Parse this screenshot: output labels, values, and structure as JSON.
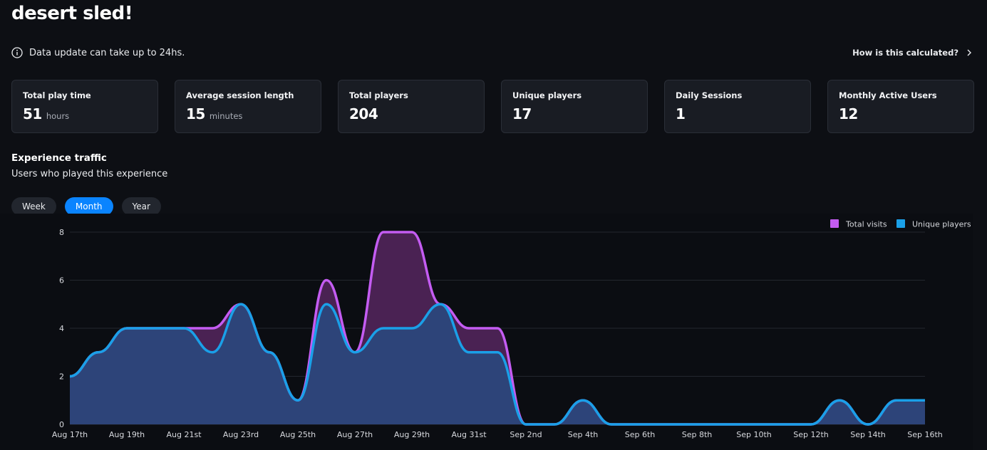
{
  "page": {
    "title": "desert sled!"
  },
  "notice": {
    "icon": "info-icon",
    "text": "Data update can take up to 24hs."
  },
  "help_link": {
    "label": "How is this calculated?",
    "icon": "chevron-right-icon"
  },
  "stats": [
    {
      "label": "Total play time",
      "value": "51",
      "unit": "hours"
    },
    {
      "label": "Average session length",
      "value": "15",
      "unit": "minutes"
    },
    {
      "label": "Total players",
      "value": "204",
      "unit": ""
    },
    {
      "label": "Unique players",
      "value": "17",
      "unit": ""
    },
    {
      "label": "Daily Sessions",
      "value": "1",
      "unit": ""
    },
    {
      "label": "Monthly Active Users",
      "value": "12",
      "unit": ""
    }
  ],
  "traffic": {
    "title": "Experience traffic",
    "subtitle": "Users who played this experience",
    "ranges": [
      "Week",
      "Month",
      "Year"
    ],
    "active_range": "Month"
  },
  "colors": {
    "accent": "#0a84ff",
    "total_visits": "#c45cf2",
    "unique_players": "#1aa0e8"
  },
  "chart_data": {
    "type": "area",
    "x": [
      "Aug 17th",
      "Aug 18th",
      "Aug 19th",
      "Aug 20th",
      "Aug 21st",
      "Aug 22nd",
      "Aug 23rd",
      "Aug 24th",
      "Aug 25th",
      "Aug 26th",
      "Aug 27th",
      "Aug 28th",
      "Aug 29th",
      "Aug 30th",
      "Aug 31st",
      "Sep 1st",
      "Sep 2nd",
      "Sep 3rd",
      "Sep 4th",
      "Sep 5th",
      "Sep 6th",
      "Sep 7th",
      "Sep 8th",
      "Sep 9th",
      "Sep 10th",
      "Sep 11th",
      "Sep 12th",
      "Sep 13th",
      "Sep 14th",
      "Sep 15th",
      "Sep 16th"
    ],
    "x_tick_labels": [
      "Aug 17th",
      "Aug 19th",
      "Aug 21st",
      "Aug 23rd",
      "Aug 25th",
      "Aug 27th",
      "Aug 29th",
      "Aug 31st",
      "Sep 2nd",
      "Sep 4th",
      "Sep 6th",
      "Sep 8th",
      "Sep 10th",
      "Sep 12th",
      "Sep 14th",
      "Sep 16th"
    ],
    "series": [
      {
        "name": "Total visits",
        "values": [
          2,
          3,
          4,
          4,
          4,
          4,
          5,
          3,
          1,
          6,
          3,
          8,
          8,
          5,
          4,
          4,
          0,
          0,
          1,
          0,
          0,
          0,
          0,
          0,
          0,
          0,
          0,
          1,
          0,
          1,
          1
        ]
      },
      {
        "name": "Unique players",
        "values": [
          2,
          3,
          4,
          4,
          4,
          3,
          5,
          3,
          1,
          5,
          3,
          4,
          4,
          5,
          3,
          3,
          0,
          0,
          1,
          0,
          0,
          0,
          0,
          0,
          0,
          0,
          0,
          1,
          0,
          1,
          1
        ]
      }
    ],
    "ylim": [
      0,
      8
    ],
    "yticks": [
      0,
      2,
      4,
      6,
      8
    ],
    "grid": true,
    "legend": "top-right"
  }
}
